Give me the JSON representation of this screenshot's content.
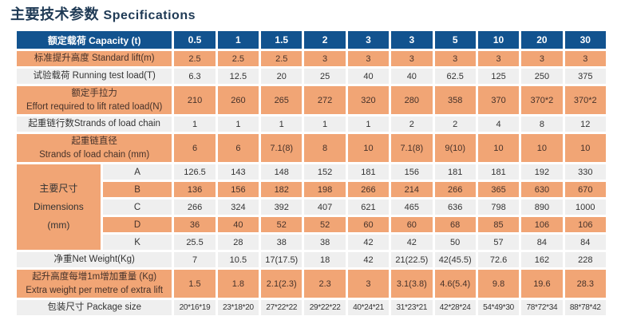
{
  "title": {
    "zh": "主要技术参数",
    "en": "Specifications"
  },
  "table": {
    "header": {
      "key": "capacity-header",
      "label": "额定载荷  Capacity (t)",
      "values": [
        "0.5",
        "1",
        "1.5",
        "2",
        "3",
        "3",
        "5",
        "10",
        "20",
        "30"
      ]
    },
    "dimensions_group_label": {
      "lines": [
        "主要尺寸",
        "Dimensions",
        "(mm)"
      ]
    },
    "rows": [
      {
        "key": "standard-lift",
        "kind": "row",
        "bg": "orange",
        "label_lines": [
          "标准提升高度   Standard lift(m)"
        ],
        "values": [
          "2.5",
          "2.5",
          "2.5",
          "3",
          "3",
          "3",
          "3",
          "3",
          "3",
          "3"
        ]
      },
      {
        "key": "running-test-load",
        "kind": "row",
        "bg": "gray",
        "label_lines": [
          "试验载荷  Running test load(T)"
        ],
        "values": [
          "6.3",
          "12.5",
          "20",
          "25",
          "40",
          "40",
          "62.5",
          "125",
          "250",
          "375"
        ]
      },
      {
        "key": "effort-to-lift-rated-load",
        "kind": "row",
        "bg": "orange",
        "double": true,
        "label_lines": [
          "额定手拉力",
          "Effort required to lift rated load(N)"
        ],
        "values": [
          "210",
          "260",
          "265",
          "272",
          "320",
          "280",
          "358",
          "370",
          "370*2",
          "370*2"
        ]
      },
      {
        "key": "strands-of-load-chain",
        "kind": "row",
        "bg": "gray",
        "label_lines": [
          "起重链行数Strands of load chain"
        ],
        "values": [
          "1",
          "1",
          "1",
          "1",
          "1",
          "2",
          "2",
          "4",
          "8",
          "12"
        ]
      },
      {
        "key": "chain-diameter",
        "kind": "row",
        "bg": "orange",
        "double": true,
        "label_lines": [
          "起重链直径",
          "Strands of load chain (mm)"
        ],
        "values": [
          "6",
          "6",
          "7.1(8)",
          "8",
          "10",
          "7.1(8)",
          "9(10)",
          "10",
          "10",
          "10"
        ]
      },
      {
        "key": "dimension-a",
        "kind": "dim",
        "bg": "gray",
        "sub": "A",
        "values": [
          "126.5",
          "143",
          "148",
          "152",
          "181",
          "156",
          "181",
          "181",
          "192",
          "330"
        ]
      },
      {
        "key": "dimension-b",
        "kind": "dim",
        "bg": "orange",
        "sub": "B",
        "values": [
          "136",
          "156",
          "182",
          "198",
          "266",
          "214",
          "266",
          "365",
          "630",
          "670"
        ]
      },
      {
        "key": "dimension-c",
        "kind": "dim",
        "bg": "gray",
        "sub": "C",
        "values": [
          "266",
          "324",
          "392",
          "407",
          "621",
          "465",
          "636",
          "798",
          "890",
          "1000"
        ]
      },
      {
        "key": "dimension-d",
        "kind": "dim",
        "bg": "orange",
        "sub": "D",
        "values": [
          "36",
          "40",
          "52",
          "52",
          "60",
          "60",
          "68",
          "85",
          "106",
          "106"
        ]
      },
      {
        "key": "dimension-k",
        "kind": "dim",
        "bg": "gray",
        "sub": "K",
        "values": [
          "25.5",
          "28",
          "38",
          "38",
          "42",
          "42",
          "50",
          "57",
          "84",
          "84"
        ]
      },
      {
        "key": "net-weight",
        "kind": "row",
        "bg": "gray",
        "label_lines": [
          "净重Net Weight(Kg)"
        ],
        "values": [
          "7",
          "10.5",
          "17(17.5)",
          "18",
          "42",
          "21(22.5)",
          "42(45.5)",
          "72.6",
          "162",
          "228"
        ]
      },
      {
        "key": "extra-weight-per-metre",
        "kind": "row",
        "bg": "orange",
        "double": true,
        "label_lines": [
          "起升高度每增1m增加重量 (Kg)",
          "Extra weight per metre of extra lift"
        ],
        "values": [
          "1.5",
          "1.8",
          "2.1(2.3)",
          "2.3",
          "3",
          "3.1(3.8)",
          "4.6(5.4)",
          "9.8",
          "19.6",
          "28.3"
        ]
      },
      {
        "key": "package-size",
        "kind": "row",
        "bg": "gray",
        "small": true,
        "label_lines": [
          "包装尺寸  Package size"
        ],
        "values": [
          "20*16*19",
          "23*18*20",
          "27*22*22",
          "29*22*22",
          "40*24*21",
          "31*23*21",
          "42*28*24",
          "54*49*30",
          "78*72*34",
          "88*78*42"
        ]
      }
    ],
    "colors": {
      "header_blue": "#12538f",
      "row_orange": "#f1a575",
      "row_gray": "#efefef",
      "title_navy": "#1f3a55",
      "grid_white": "#ffffff"
    }
  }
}
